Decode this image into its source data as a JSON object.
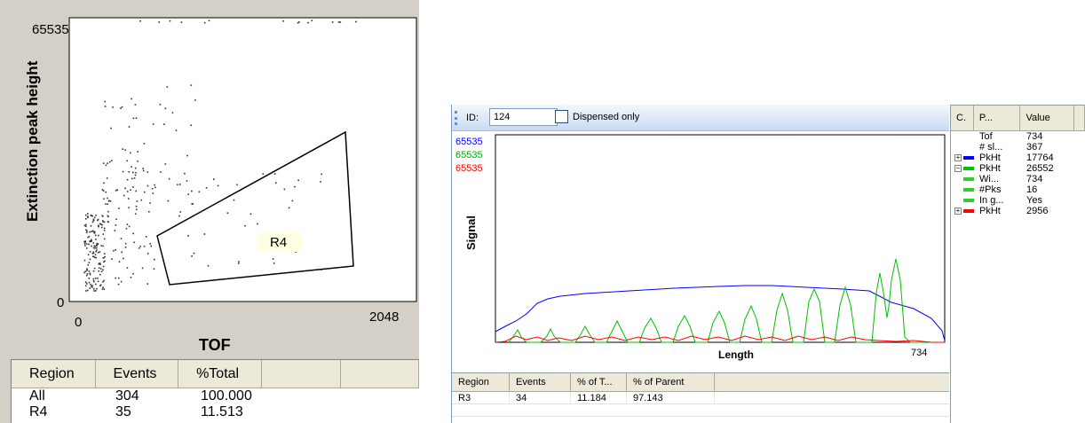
{
  "scatter_panel": {
    "y_axis_label": "Extinction peak height",
    "x_axis_label": "TOF",
    "y_max_label": "65535",
    "y_min_label": "0",
    "x_min_label": "0",
    "x_max_label": "2048",
    "region_label": "R4",
    "region_label_bg": "#ffffe1",
    "point_color": "#333333"
  },
  "left_table": {
    "columns": [
      "Region",
      "Events",
      "%Total"
    ],
    "rows": [
      [
        "All",
        "304",
        "100.000"
      ],
      [
        "R4",
        "35",
        "11.513"
      ]
    ]
  },
  "toolbar": {
    "id_label": "ID:",
    "id_value": "124",
    "dispensed_label": "Dispensed only"
  },
  "signal_chart": {
    "y_label": "Signal",
    "x_label": "Length",
    "x_max_label": "734",
    "channel_max_labels": [
      {
        "text": "65535",
        "color": "#0000ff"
      },
      {
        "text": "65535",
        "color": "#00b000"
      },
      {
        "text": "65535",
        "color": "#ff0000"
      }
    ]
  },
  "right_table": {
    "columns": [
      "Region",
      "Events",
      "% of T...",
      "% of Parent"
    ],
    "rows": [
      [
        "R3",
        "34",
        "11.184",
        "97.143"
      ]
    ]
  },
  "property_grid": {
    "columns": [
      "C.",
      "P...",
      "Value"
    ],
    "rows": [
      {
        "expand": "",
        "swatch": "",
        "name": "Tof",
        "value": "734"
      },
      {
        "expand": "",
        "swatch": "",
        "name": "# sl...",
        "value": "367"
      },
      {
        "expand": "+",
        "swatch": "#0000ff",
        "name": "PkHt",
        "value": "17764"
      },
      {
        "expand": "−",
        "swatch": "#00c000",
        "name": "PkHt",
        "value": "26552"
      },
      {
        "expand": "",
        "swatch": "#33cc33",
        "name": "Wi...",
        "value": "734"
      },
      {
        "expand": "",
        "swatch": "#33cc33",
        "name": "#Pks",
        "value": "16"
      },
      {
        "expand": "",
        "swatch": "#33cc33",
        "name": "In g...",
        "value": "Yes"
      },
      {
        "expand": "+",
        "swatch": "#ff0000",
        "name": "PkHt",
        "value": "2956"
      }
    ]
  }
}
